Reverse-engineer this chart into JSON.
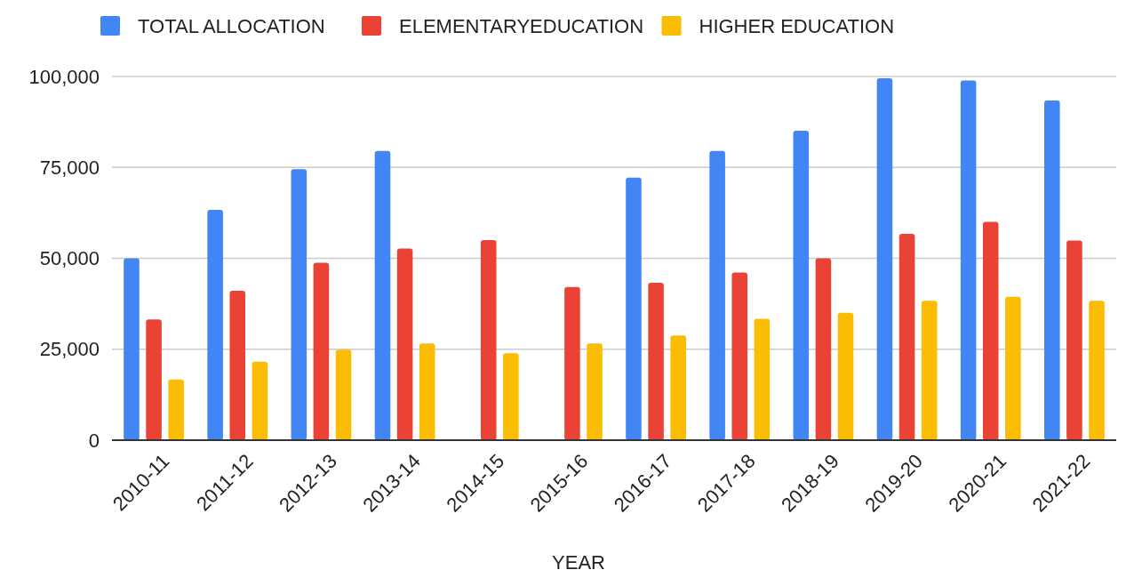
{
  "chart_data": {
    "type": "bar",
    "xlabel": "YEAR",
    "categories": [
      "2010-11",
      "2011-12",
      "2012-13",
      "2013-14",
      "2014-15",
      "2015-16",
      "2016-17",
      "2017-18",
      "2018-19",
      "2019-20",
      "2020-21",
      "2021-22"
    ],
    "series": [
      {
        "name": "TOTAL ALLOCATION",
        "color": "#4285f4",
        "values": [
          50000,
          63300,
          74500,
          79500,
          null,
          null,
          72200,
          79500,
          85100,
          99500,
          98900,
          93400
        ]
      },
      {
        "name": "ELEMENTARYEDUCATION",
        "color": "#ea4335",
        "values": [
          33200,
          41100,
          48800,
          52700,
          55000,
          42100,
          43300,
          46100,
          50000,
          56700,
          60000,
          54900
        ]
      },
      {
        "name": "HIGHER EDUCATION",
        "color": "#fbbc04",
        "values": [
          16700,
          21600,
          24900,
          26600,
          23900,
          26600,
          28800,
          33400,
          35000,
          38300,
          39400,
          38300
        ]
      }
    ],
    "ylim": [
      0,
      100000
    ],
    "yticks": [
      {
        "value": 0,
        "label": "0"
      },
      {
        "value": 25000,
        "label": "25,000"
      },
      {
        "value": 50000,
        "label": "50,000"
      },
      {
        "value": 75000,
        "label": "75,000"
      },
      {
        "value": 100000,
        "label": "100,000"
      }
    ],
    "grid": true,
    "legend": "top"
  }
}
